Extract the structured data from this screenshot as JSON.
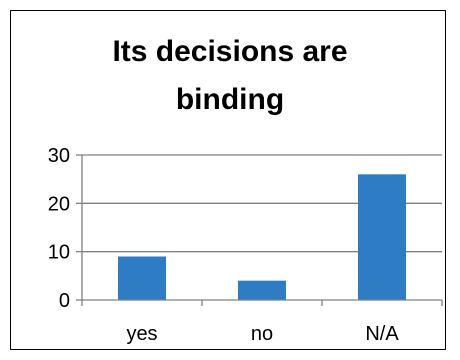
{
  "chart_data": {
    "type": "bar",
    "title_lines": [
      "Its decisions are",
      "binding"
    ],
    "title": "Its decisions are binding",
    "categories": [
      "yes",
      "no",
      "N/A"
    ],
    "values": [
      9,
      4,
      26
    ],
    "xlabel": "",
    "ylabel": "",
    "ylim": [
      0,
      30
    ],
    "yticks": [
      0,
      10,
      20,
      30
    ],
    "grid": true,
    "legend": "none",
    "colors": {
      "bar": "#2E7DC4",
      "gridline": "#808080",
      "axis": "#808080",
      "text": "#000000"
    }
  }
}
